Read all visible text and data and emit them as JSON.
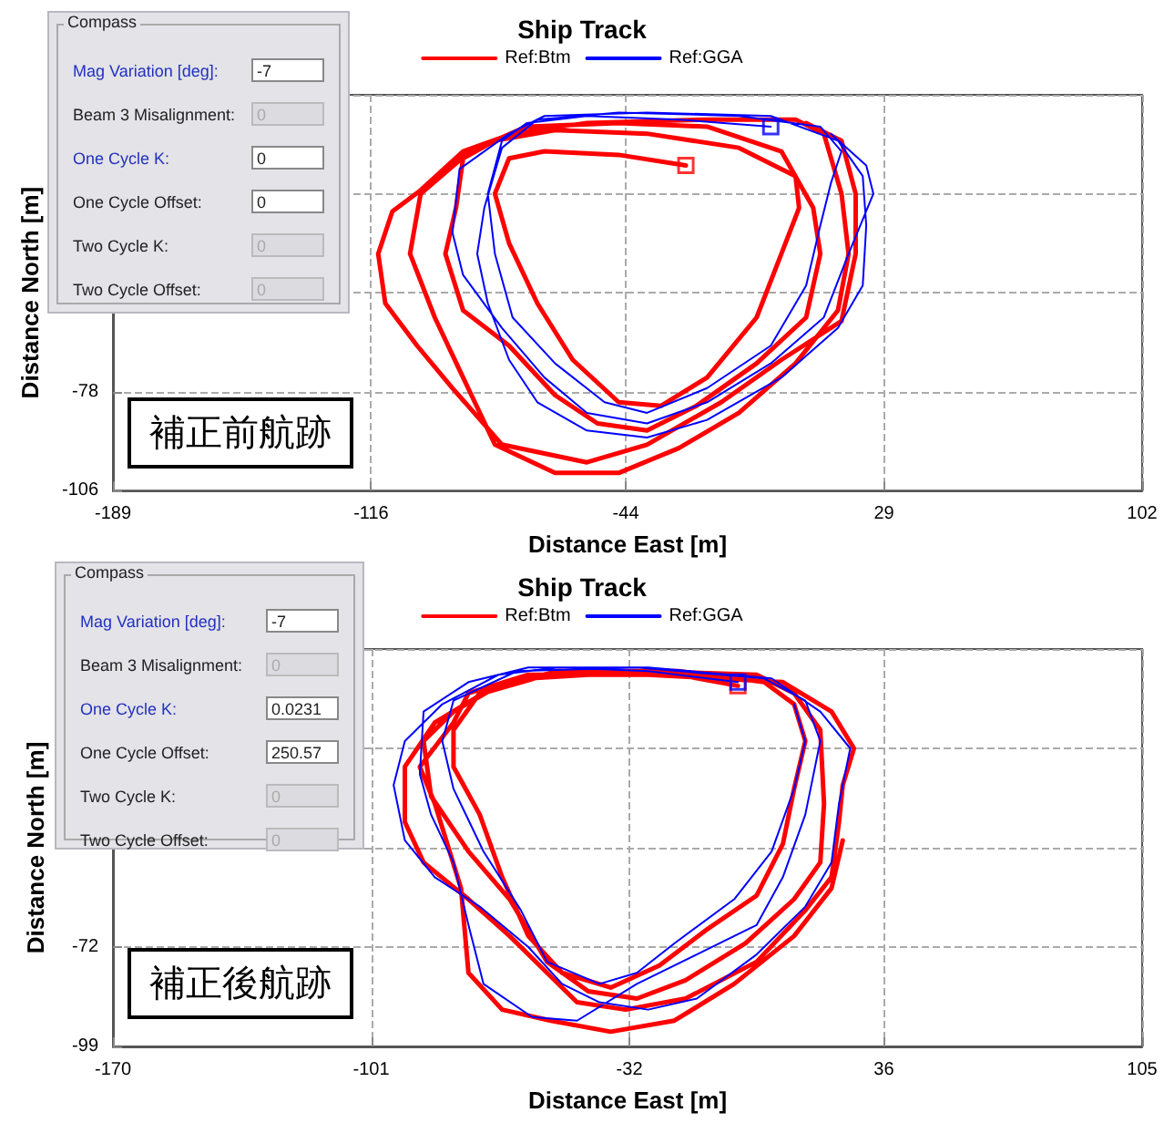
{
  "chart_data": [
    {
      "type": "other",
      "title": "Compass",
      "annotations": [
        "Mag Variation [deg]:",
        "-7",
        "Beam 3 Misalignment:",
        "0",
        "One Cycle K:",
        "0",
        "One Cycle Offset:",
        "0",
        "Two Cycle K:",
        "0",
        "Two Cycle Offset:",
        "0"
      ]
    },
    {
      "type": "line",
      "title": "Ship Track",
      "xlabel": "Distance East [m]",
      "ylabel": "Distance North [m]",
      "legend": "top",
      "grid": true,
      "marker": "none",
      "line_style": "solid",
      "xlim": [
        -189,
        102
      ],
      "xticks": [
        -189,
        -116,
        -44,
        29,
        102
      ],
      "ylim": [
        -106,
        6
      ],
      "yticks": [
        -106,
        -78,
        {
          "value": -50,
          "label": null
        },
        {
          "value": -22,
          "label": null
        },
        {
          "value": 6,
          "label": null
        }
      ],
      "annotations": [
        "補正前航跡"
      ],
      "series": [
        {
          "name": "Ref:Btm",
          "color": "#ff0000",
          "x": [
            -27,
            -46,
            -67,
            -77,
            -81,
            -77,
            -69,
            -59,
            -46,
            -34,
            -21,
            -7,
            0,
            5,
            4,
            -12,
            -38,
            -64,
            -81,
            -90,
            -92,
            -95,
            -90,
            -77,
            -64,
            -52,
            -38,
            -24,
            -7,
            7,
            11,
            9,
            0,
            -21,
            -46,
            -72,
            -88,
            -102,
            -105,
            -98,
            -90,
            -81,
            -64,
            -46,
            -29,
            -12,
            4,
            16,
            19,
            17,
            12,
            4,
            -21,
            -55,
            -76,
            -90,
            -102,
            -110,
            -114,
            -112,
            -103,
            -93,
            -79,
            -55,
            -38,
            -17,
            0,
            17,
            21,
            21,
            17,
            7
          ],
          "values": [
            -14,
            -11,
            -10,
            -12,
            -22,
            -36,
            -53,
            -69,
            -81,
            -82,
            -74,
            -57,
            -39,
            -26,
            -17,
            -9,
            -5,
            -4,
            -7,
            -12,
            -26,
            -39,
            -55,
            -65,
            -79,
            -87,
            -89,
            -82,
            -70,
            -57,
            -39,
            -26,
            -10,
            -3,
            -2,
            -3,
            -10,
            -22,
            -39,
            -57,
            -74,
            -93,
            -101,
            -101,
            -94,
            -84,
            -70,
            -55,
            -39,
            -22,
            -5,
            -1,
            -1,
            -2,
            -5,
            -10,
            -21,
            -27,
            -39,
            -53,
            -65,
            -77,
            -93,
            -98,
            -93,
            -81,
            -69,
            -58,
            -39,
            -22,
            -7,
            -2
          ]
        },
        {
          "name": "Ref:GGA",
          "color": "#0000ff",
          "x": [
            -3,
            -29,
            -55,
            -72,
            -79,
            -83,
            -81,
            -76,
            -64,
            -50,
            -38,
            -21,
            -3,
            7,
            11,
            14,
            17,
            11,
            -12,
            -46,
            -69,
            -79,
            -84,
            -86,
            -83,
            -77,
            -69,
            -55,
            -38,
            -21,
            0,
            16,
            23,
            24,
            23,
            16,
            -3,
            -38,
            -67,
            -77,
            -91,
            -93,
            -90,
            -79,
            -67,
            -55,
            -38,
            -21,
            -3,
            12,
            19,
            26,
            24,
            14
          ],
          "values": [
            -3,
            -1,
            0,
            -2,
            -7,
            -22,
            -39,
            -57,
            -70,
            -81,
            -84,
            -77,
            -65,
            -48,
            -31,
            -19,
            -10,
            -3,
            0,
            1,
            -1,
            -9,
            -26,
            -39,
            -53,
            -69,
            -81,
            -89,
            -91,
            -86,
            -74,
            -60,
            -48,
            -31,
            -17,
            -7,
            0,
            1,
            0,
            -5,
            -15,
            -33,
            -45,
            -60,
            -74,
            -84,
            -87,
            -81,
            -70,
            -57,
            -39,
            -22,
            -14,
            -5
          ]
        },
        {
          "type": "scatter",
          "color": "#ff0000",
          "marker": "square",
          "x": [
            -27
          ],
          "values": [
            -14
          ]
        },
        {
          "type": "scatter",
          "color": "#0000ff",
          "marker": "square",
          "x": [
            -3
          ],
          "values": [
            -3
          ]
        }
      ]
    },
    {
      "type": "other",
      "title": "Compass",
      "annotations": [
        "Mag Variation [deg]:",
        "-7",
        "Beam 3 Misalignment:",
        "0",
        "One Cycle K:",
        "0.0231",
        "One Cycle Offset:",
        "250.57",
        "Two Cycle K:",
        "0",
        "Two Cycle Offset:",
        "0"
      ]
    },
    {
      "type": "line",
      "title": "Ship Track",
      "xlabel": "Distance East [m]",
      "ylabel": "Distance North [m]",
      "legend": "top",
      "grid": true,
      "marker": "none",
      "line_style": "solid",
      "xlim": [
        -170,
        105
      ],
      "xticks": [
        -170,
        -101,
        -32,
        36,
        105
      ],
      "ylim": [
        -99,
        9
      ],
      "yticks": [
        -99,
        -72,
        {
          "value": -45,
          "label": null
        },
        {
          "value": -18,
          "label": null
        },
        {
          "value": 9,
          "label": null
        }
      ],
      "annotations": [
        "補正後航跡"
      ],
      "series": [
        {
          "name": "Ref:Btm",
          "color": "#ff0000",
          "x": [
            -3,
            -19,
            -43,
            -59,
            -72,
            -79,
            -79,
            -72,
            -66,
            -59,
            -50,
            -37,
            -24,
            -11,
            2,
            9,
            12,
            15,
            12,
            4,
            -19,
            -51,
            -67,
            -79,
            -87,
            -85,
            -75,
            -64,
            -54,
            -43,
            -30,
            -17,
            -1,
            12,
            19,
            20,
            19,
            12,
            2,
            -27,
            -54,
            -71,
            -84,
            -92,
            -92,
            -87,
            -75,
            -64,
            -54,
            -46,
            -33,
            -17,
            2,
            15,
            22,
            24,
            25,
            28,
            22,
            9,
            -27,
            -59,
            -75,
            -79,
            -88,
            -84,
            -77,
            -75,
            -66,
            -53,
            -37,
            -20,
            -4,
            12,
            22,
            25
          ],
          "values": [
            -1,
            2,
            2,
            1,
            -3,
            -13,
            -23,
            -36,
            -53,
            -69,
            -79,
            -83,
            -77,
            -67,
            -58,
            -44,
            -29,
            -16,
            -6,
            0,
            3,
            3,
            -1,
            -8,
            -16,
            -31,
            -46,
            -59,
            -76,
            -84,
            -86,
            -81,
            -71,
            -59,
            -49,
            -33,
            -13,
            -3,
            2,
            3,
            2,
            -3,
            -11,
            -23,
            -38,
            -49,
            -59,
            -69,
            -79,
            -87,
            -89,
            -86,
            -76,
            -62,
            -53,
            -38,
            -28,
            -18,
            -8,
            0,
            2,
            2,
            -3,
            -11,
            -23,
            -33,
            -56,
            -79,
            -89,
            -92,
            -95,
            -92,
            -82,
            -69,
            -56,
            -43
          ]
        },
        {
          "name": "Ref:GGA",
          "color": "#0000ff",
          "x": [
            -3,
            -27,
            -51,
            -67,
            -82,
            -92,
            -95,
            -92,
            -84,
            -72,
            -59,
            -50,
            -40,
            -27,
            -14,
            2,
            15,
            22,
            24,
            27,
            19,
            6,
            -27,
            -59,
            -75,
            -87,
            -88,
            -85,
            -79,
            -75,
            -71,
            -58,
            -46,
            -30,
            -14,
            2,
            9,
            15,
            19,
            15,
            4,
            -30,
            -62,
            -79,
            -82,
            -79,
            -71,
            -61,
            -54,
            -40,
            -30,
            -20,
            -4,
            6,
            12,
            15,
            12
          ],
          "values": [
            0,
            3,
            4,
            2,
            -6,
            -16,
            -28,
            -43,
            -53,
            -61,
            -72,
            -82,
            -87,
            -89,
            -86,
            -74,
            -61,
            -49,
            -33,
            -18,
            -8,
            1,
            4,
            4,
            0,
            -8,
            -25,
            -36,
            -49,
            -66,
            -82,
            -91,
            -92,
            -82,
            -74,
            -66,
            -53,
            -36,
            -16,
            -5,
            1,
            4,
            3,
            -5,
            -16,
            -29,
            -46,
            -62,
            -76,
            -82,
            -79,
            -71,
            -59,
            -46,
            -29,
            -16,
            -6
          ]
        },
        {
          "type": "scatter",
          "color": "#ff0000",
          "marker": "square",
          "x": [
            -3
          ],
          "values": [
            -1
          ]
        },
        {
          "type": "scatter",
          "color": "#0000ff",
          "marker": "square",
          "x": [
            -3
          ],
          "values": [
            0
          ]
        }
      ]
    }
  ]
}
